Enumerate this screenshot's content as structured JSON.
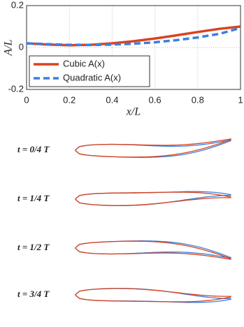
{
  "chart_data": {
    "type": "line",
    "xlabel": "x/L",
    "ylabel": "A/L",
    "x": [
      0,
      0.1,
      0.2,
      0.3,
      0.4,
      0.5,
      0.6,
      0.7,
      0.8,
      0.9,
      1
    ],
    "series": [
      {
        "name": "Cubic A(x)",
        "color": "#d9431e",
        "style": "solid",
        "values": [
          0.02,
          0.014,
          0.011,
          0.013,
          0.02,
          0.03,
          0.043,
          0.058,
          0.074,
          0.089,
          0.1
        ]
      },
      {
        "name": "Quadratic A(x)",
        "color": "#3b7fe0",
        "style": "dashed",
        "values": [
          0.02,
          0.016,
          0.013,
          0.012,
          0.014,
          0.018,
          0.025,
          0.035,
          0.048,
          0.065,
          0.093
        ]
      }
    ],
    "xlim": [
      0,
      1
    ],
    "xticks": [
      0,
      0.2,
      0.4,
      0.6,
      0.8,
      1
    ],
    "ylim": [
      -0.2,
      0.2
    ],
    "yticks": [
      -0.2,
      0,
      0.2
    ],
    "grid": true,
    "legend": "lower left"
  },
  "snapshots": [
    "t = 0/4 T",
    "t = 1/4 T",
    "t = 1/2 T",
    "t = 3/4 T"
  ]
}
